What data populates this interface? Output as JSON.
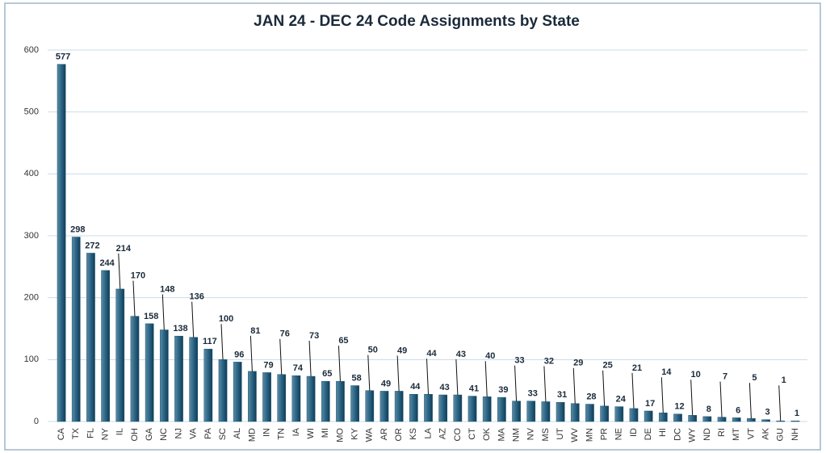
{
  "chart_data": {
    "type": "bar",
    "title": "JAN 24 - DEC 24 Code Assignments by State",
    "categories": [
      "CA",
      "TX",
      "FL",
      "NY",
      "IL",
      "OH",
      "GA",
      "NC",
      "NJ",
      "VA",
      "PA",
      "SC",
      "AL",
      "MD",
      "IN",
      "TN",
      "IA",
      "WI",
      "MI",
      "MO",
      "KY",
      "WA",
      "AR",
      "OR",
      "KS",
      "LA",
      "AZ",
      "CO",
      "CT",
      "OK",
      "MA",
      "NM",
      "NV",
      "MS",
      "UT",
      "WV",
      "MN",
      "PR",
      "NE",
      "ID",
      "DE",
      "HI",
      "DC",
      "WY",
      "ND",
      "RI",
      "MT",
      "VT",
      "AK",
      "GU",
      "NH"
    ],
    "values": [
      577,
      298,
      272,
      244,
      214,
      170,
      158,
      148,
      138,
      136,
      117,
      100,
      96,
      81,
      79,
      76,
      74,
      73,
      65,
      65,
      58,
      50,
      49,
      49,
      44,
      44,
      43,
      43,
      41,
      40,
      39,
      33,
      33,
      32,
      31,
      29,
      28,
      25,
      24,
      21,
      17,
      14,
      12,
      10,
      8,
      7,
      6,
      5,
      3,
      1,
      1
    ],
    "color": "#1f5773",
    "ylim": [
      0,
      600
    ],
    "yticks": [
      0,
      100,
      200,
      300,
      400,
      500,
      600
    ],
    "grid": true
  }
}
